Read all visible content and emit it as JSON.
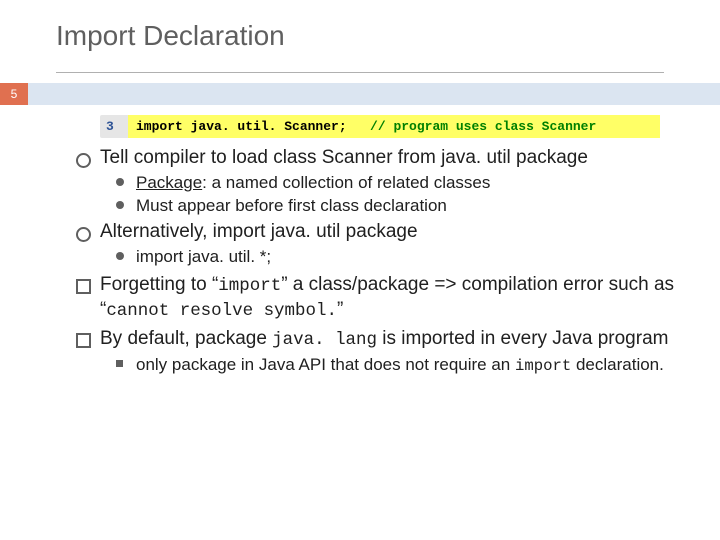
{
  "title": "Import Declaration",
  "slide_number": "5",
  "colors": {
    "title_text": "#5f5f5f",
    "underline": "#b0b0b0",
    "badge_bg": "#e07050",
    "badge_text": "#ffffff",
    "badge_bar": "#dbe5f1",
    "code_lineno_bg": "#e6e6e6",
    "code_highlight_bg": "#ffff66",
    "code_lineno_color": "#2f5496",
    "code_comment_color": "#008000",
    "body_text": "#202020",
    "bullet_color": "#5f5f5f",
    "background": "#ffffff"
  },
  "typography": {
    "title_fontsize": 28,
    "body_fontsize": 19,
    "sub_fontsize": 17,
    "code_fontsize": 13,
    "code_family": "Courier New"
  },
  "code": {
    "line_number": "3",
    "statement": "import java. util. Scanner;",
    "comment": "// program uses class Scanner"
  },
  "bullets": {
    "b1": "Tell compiler to load class Scanner from java. util package",
    "b1a_prefix": "Package",
    "b1a_rest": ": a named collection of related classes",
    "b1b": "Must appear before first class declaration",
    "b2": "Alternatively, import java. util package",
    "b2a": "import java. util. *;",
    "b3_p1": "Forgetting to ",
    "b3_q1": "“",
    "b3_code1": "import",
    "b3_q2": "”",
    "b3_p2": " a class/package => compilation error such as ",
    "b3_q3": "“",
    "b3_code2": "cannot resolve symbol.",
    "b3_q4": "”",
    "b4_p1": "By default, package ",
    "b4_code": "java. lang",
    "b4_p2": " is imported in every Java program",
    "b4a_p1": "only package in Java API that does not require an ",
    "b4a_code": "import",
    "b4a_p2": " declaration."
  }
}
